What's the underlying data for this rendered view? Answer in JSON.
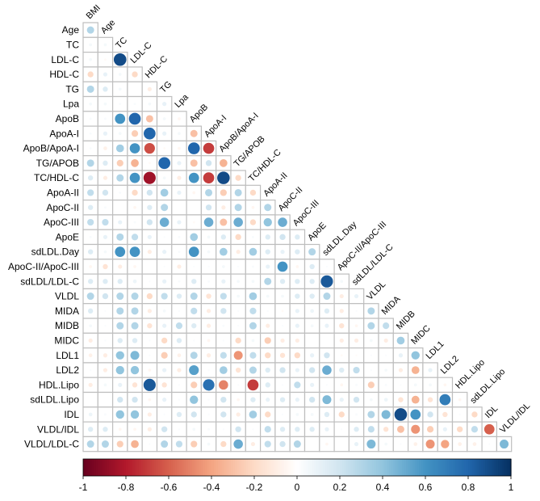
{
  "chart_data": {
    "type": "heatmap",
    "subtype": "correlation-circles-lower-triangle",
    "row_labels": [
      "Age",
      "TC",
      "LDL-C",
      "HDL-C",
      "TG",
      "Lpa",
      "ApoB",
      "ApoA-I",
      "ApoB/ApoA-I",
      "TG/APOB",
      "TC/HDL-C",
      "ApoA-II",
      "ApoC-II",
      "ApoC-III",
      "ApoE",
      "sdLDL.Day",
      "ApoC-II/ApoC-III",
      "sdLDL/LDL-C",
      "VLDL",
      "MIDA",
      "MIDB",
      "MIDC",
      "LDL1",
      "LDL2",
      "HDL.Lipo",
      "sdLDL.Lipo",
      "IDL",
      "VLDL/IDL",
      "VLDL/LDL-C"
    ],
    "col_labels": [
      "BMI",
      "Age",
      "TC",
      "LDL-C",
      "HDL-C",
      "TG",
      "Lpa",
      "ApoB",
      "ApoA-I",
      "ApoB/ApoA-I",
      "TG/APOB",
      "TC/HDL-C",
      "ApoA-II",
      "ApoC-II",
      "ApoC-III",
      "ApoE",
      "sdLDL.Day",
      "ApoC-II/ApoC-III",
      "sdLDL/LDL-C",
      "VLDL",
      "MIDA",
      "MIDB",
      "MIDC",
      "LDL1",
      "LDL2",
      "HDL.Lipo",
      "sdLDL.Lipo",
      "IDL",
      "VLDL/IDL"
    ],
    "values": [
      [
        0.3
      ],
      [
        0.05,
        0.05
      ],
      [
        0.05,
        -0.03,
        0.9
      ],
      [
        -0.2,
        0.1,
        0.05,
        -0.2
      ],
      [
        0.3,
        0.15,
        0.05,
        0,
        -0.1
      ],
      [
        0.05,
        0.05,
        0.03,
        0.03,
        0.05,
        0.1
      ],
      [
        0.03,
        0.03,
        0.6,
        0.8,
        -0.3,
        0.05,
        -0.05
      ],
      [
        0.03,
        0.1,
        0.05,
        -0.25,
        0.8,
        0.1,
        0.05,
        -0.3
      ],
      [
        0.03,
        -0.08,
        0.35,
        0.6,
        -0.65,
        -0.03,
        -0.05,
        0.8,
        -0.7
      ],
      [
        0.3,
        0.15,
        -0.25,
        -0.35,
        -0.03,
        0.8,
        0.1,
        -0.3,
        0.2,
        -0.35
      ],
      [
        0.15,
        -0.1,
        0.3,
        0.6,
        -0.85,
        0.05,
        -0.1,
        0.6,
        -0.7,
        0.9,
        -0.2
      ],
      [
        0.25,
        0.2,
        0.03,
        -0.2,
        0.2,
        0.35,
        0.1,
        -0.05,
        0.3,
        -0.25,
        0.3,
        -0.2
      ],
      [
        0.15,
        0.03,
        0,
        -0.05,
        0.15,
        0.3,
        0,
        0,
        0.2,
        -0.1,
        0.3,
        -0.05,
        0.3
      ],
      [
        0.25,
        0.25,
        0.1,
        0.03,
        0.2,
        0.5,
        0.1,
        -0.03,
        0.5,
        -0.3,
        0.5,
        -0.2,
        0.4,
        0.5
      ],
      [
        0.03,
        0.1,
        0.3,
        0.25,
        0.1,
        0.02,
        0.03,
        0.35,
        0.05,
        0.15,
        -0.2,
        0.03,
        0.15,
        0.2,
        0.15
      ],
      [
        0.15,
        0.05,
        0.6,
        0.6,
        -0.1,
        0.1,
        0.03,
        0.6,
        0.05,
        0.35,
        -0.1,
        0.35,
        0.15,
        0.1,
        0.15,
        0.3
      ],
      [
        -0.05,
        -0.15,
        -0.1,
        -0.05,
        0,
        0.02,
        -0.1,
        0.02,
        0.02,
        0.05,
        0.02,
        0.03,
        0.1,
        0.6,
        -0.05,
        0.15,
        0.02
      ],
      [
        0.15,
        0.15,
        0.15,
        0.08,
        0.02,
        0.1,
        0.03,
        0.15,
        0.03,
        0.1,
        0.05,
        0.05,
        0.3,
        0.15,
        0.15,
        0.15,
        0.85,
        0.05
      ],
      [
        0.3,
        0.2,
        0.3,
        0.3,
        -0.2,
        0.25,
        0.15,
        0.3,
        -0.15,
        0.25,
        0.05,
        0.35,
        0.05,
        0.05,
        0.15,
        0.15,
        0.3,
        -0.1,
        0.1
      ],
      [
        0.15,
        0.02,
        0.3,
        0.3,
        -0.1,
        0.05,
        0.02,
        0.25,
        -0.1,
        0.2,
        0.02,
        0.25,
        0.02,
        -0.03,
        0.1,
        0.08,
        0.15,
        -0.1,
        0.02,
        0.3
      ],
      [
        0.05,
        0.02,
        0.3,
        0.3,
        -0.15,
        0.1,
        0.25,
        0.15,
        -0.1,
        0.03,
        0.02,
        0.3,
        -0.1,
        0.02,
        0.1,
        0.05,
        0.1,
        -0.15,
        -0.05,
        0.3,
        0.25
      ],
      [
        -0.1,
        0.02,
        0.15,
        0.15,
        0.02,
        -0.2,
        0.15,
        0.02,
        -0.05,
        0.02,
        -0.2,
        0.05,
        -0.25,
        -0.1,
        -0.1,
        0,
        0,
        -0.1,
        -0.1,
        0.05,
        -0.1,
        0.35
      ],
      [
        -0.08,
        -0.1,
        0.4,
        0.45,
        0.02,
        -0.25,
        -0.08,
        0.3,
        -0.1,
        0.25,
        -0.45,
        0.25,
        -0.2,
        -0.15,
        -0.2,
        0.1,
        0.2,
        -0.03,
        -0.02,
        0.02,
        0.02,
        0.1,
        0.4
      ],
      [
        0.02,
        -0.1,
        0.4,
        0.4,
        -0.05,
        0.1,
        -0.1,
        0.55,
        0.02,
        0.35,
        -0.15,
        0.3,
        0.15,
        0.2,
        0.1,
        0.2,
        0.5,
        0.15,
        0.25,
        0.02,
        0.05,
        -0.1,
        -0.35,
        0.1
      ],
      [
        -0.1,
        0.05,
        0.1,
        -0.15,
        0.85,
        -0.15,
        0.02,
        -0.25,
        0.75,
        -0.5,
        0.02,
        -0.7,
        0.15,
        0.02,
        0.25,
        0.1,
        0.02,
        -0.05,
        0.03,
        -0.25,
        0.03,
        0.02,
        0.05,
        0.05,
        -0.05
      ],
      [
        0,
        0,
        0.2,
        0.2,
        -0.05,
        0.1,
        0.02,
        0.4,
        0.02,
        0.2,
        -0.05,
        0.15,
        0.1,
        0.15,
        0.1,
        0.2,
        0.45,
        0.1,
        0.2,
        0.05,
        0.08,
        -0.15,
        -0.35,
        -0.15,
        0.7,
        -0.05
      ],
      [
        0.08,
        0.03,
        0.4,
        0.4,
        -0.1,
        0.02,
        0.15,
        0.2,
        0.02,
        0.2,
        -0.1,
        0.35,
        -0.2,
        0.02,
        0.05,
        0.05,
        0.15,
        -0.2,
        0.03,
        0.3,
        0.45,
        0.9,
        0.6,
        0.2,
        -0.15,
        0.02,
        -0.2
      ],
      [
        0.15,
        0.15,
        -0.05,
        -0.05,
        -0.1,
        0.2,
        0.02,
        0.05,
        0.03,
        0.02,
        0.2,
        0.02,
        0.25,
        0.15,
        0.15,
        0.15,
        0.1,
        0.02,
        0.15,
        0.25,
        -0.15,
        -0.3,
        -0.45,
        -0.25,
        0.1,
        -0.2,
        0.25,
        -0.6
      ],
      [
        0.3,
        0.3,
        -0.25,
        -0.35,
        0.02,
        0.3,
        0.25,
        -0.25,
        0.05,
        -0.2,
        0.5,
        -0.1,
        0.25,
        0.2,
        0.3,
        0,
        -0.05,
        0,
        0.1,
        0.45,
        0.05,
        0.02,
        -0.08,
        -0.45,
        -0.4,
        -0.08,
        -0.08,
        0.02,
        0.45
      ]
    ],
    "color_range": [
      -1,
      1
    ],
    "colorbar": {
      "placement": "bottom",
      "ticks": [
        "-1",
        "-0.8",
        "-0.6",
        "-0.4",
        "-0.2",
        "0",
        "0.2",
        "0.4",
        "0.6",
        "0.8",
        "1"
      ],
      "tick_values": [
        -1,
        -0.8,
        -0.6,
        -0.4,
        -0.2,
        0,
        0.2,
        0.4,
        0.6,
        0.8,
        1
      ]
    },
    "palette": [
      "#67001F",
      "#B2182B",
      "#D6604D",
      "#F4A582",
      "#FDDBC7",
      "#FFFFFF",
      "#D1E5F0",
      "#92C5DE",
      "#4393C3",
      "#2166AC",
      "#053061"
    ],
    "grid_color": "#BEBEBE"
  }
}
